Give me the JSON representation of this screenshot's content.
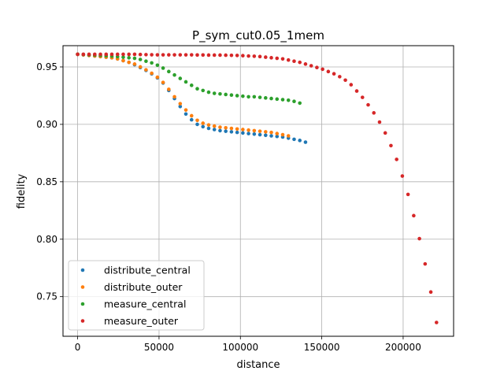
{
  "chart_data": {
    "type": "scatter",
    "title": "P_sym_cut0.05_1mem",
    "xlabel": "distance",
    "ylabel": "fidelity",
    "xlim": [
      -9000,
      231000
    ],
    "ylim": [
      0.7155,
      0.9685
    ],
    "xticks": [
      0,
      50000,
      100000,
      150000,
      200000
    ],
    "xtick_labels": [
      "0",
      "50000",
      "100000",
      "150000",
      "200000"
    ],
    "yticks": [
      0.75,
      0.8,
      0.85,
      0.9,
      0.95
    ],
    "ytick_labels": [
      "0.75",
      "0.80",
      "0.85",
      "0.90",
      "0.95"
    ],
    "grid": true,
    "legend_position": "lower-left",
    "series": [
      {
        "name": "distribute_central",
        "color": "#1f77b4",
        "x": [
          0,
          3500,
          7000,
          10500,
          14000,
          17500,
          21000,
          24500,
          28000,
          31500,
          35000,
          38500,
          42000,
          45500,
          49000,
          52500,
          56000,
          59500,
          63000,
          66500,
          70000,
          73500,
          77000,
          80500,
          84000,
          87500,
          91000,
          94500,
          98000,
          101500,
          105000,
          108500,
          112000,
          115500,
          119000,
          122500,
          126000,
          129500,
          133000,
          136500,
          140000
        ],
        "y": [
          0.961,
          0.9605,
          0.96,
          0.9595,
          0.959,
          0.9585,
          0.958,
          0.957,
          0.9555,
          0.954,
          0.952,
          0.9495,
          0.947,
          0.944,
          0.9405,
          0.936,
          0.9295,
          0.9225,
          0.9155,
          0.909,
          0.904,
          0.9,
          0.898,
          0.8965,
          0.8955,
          0.8945,
          0.894,
          0.8935,
          0.893,
          0.8925,
          0.892,
          0.8915,
          0.891,
          0.8905,
          0.89,
          0.8895,
          0.889,
          0.888,
          0.887,
          0.886,
          0.8845
        ]
      },
      {
        "name": "distribute_outer",
        "color": "#ff7f0e",
        "x": [
          0,
          3500,
          7000,
          10500,
          14000,
          17500,
          21000,
          24500,
          28000,
          31500,
          35000,
          38500,
          42000,
          45500,
          49000,
          52500,
          56000,
          59500,
          63000,
          66500,
          70000,
          73500,
          77000,
          80500,
          84000,
          87500,
          91000,
          94500,
          98000,
          101500,
          105000,
          108500,
          112000,
          115500,
          119000,
          122500,
          126000,
          129500
        ],
        "y": [
          0.961,
          0.9605,
          0.96,
          0.9595,
          0.959,
          0.9585,
          0.958,
          0.957,
          0.9555,
          0.954,
          0.9525,
          0.95,
          0.9475,
          0.9445,
          0.941,
          0.9365,
          0.9305,
          0.924,
          0.918,
          0.9125,
          0.9075,
          0.9035,
          0.901,
          0.8995,
          0.8985,
          0.8975,
          0.897,
          0.8965,
          0.896,
          0.8955,
          0.895,
          0.8945,
          0.894,
          0.8935,
          0.893,
          0.892,
          0.891,
          0.89
        ]
      },
      {
        "name": "measure_central",
        "color": "#2ca02c",
        "x": [
          0,
          3500,
          7000,
          10500,
          14000,
          17500,
          21000,
          24500,
          28000,
          31500,
          35000,
          38500,
          42000,
          45500,
          49000,
          52500,
          56000,
          59500,
          63000,
          66500,
          70000,
          73500,
          77000,
          80500,
          84000,
          87500,
          91000,
          94500,
          98000,
          101500,
          105000,
          108500,
          112000,
          115500,
          119000,
          122500,
          126000,
          129500,
          133000,
          136500
        ],
        "y": [
          0.961,
          0.9608,
          0.9605,
          0.9603,
          0.96,
          0.9597,
          0.9594,
          0.959,
          0.9585,
          0.958,
          0.9575,
          0.9565,
          0.955,
          0.9535,
          0.9515,
          0.949,
          0.946,
          0.943,
          0.94,
          0.937,
          0.934,
          0.931,
          0.9295,
          0.928,
          0.927,
          0.9265,
          0.926,
          0.9255,
          0.925,
          0.9245,
          0.924,
          0.924,
          0.9235,
          0.923,
          0.9225,
          0.922,
          0.9215,
          0.921,
          0.92,
          0.9185
        ]
      },
      {
        "name": "measure_outer",
        "color": "#d62728",
        "x": [
          0,
          3500,
          7000,
          10500,
          14000,
          17500,
          21000,
          24500,
          28000,
          31500,
          35000,
          38500,
          42000,
          45500,
          49000,
          52500,
          56000,
          59500,
          63000,
          66500,
          70000,
          73500,
          77000,
          80500,
          84000,
          87500,
          91000,
          94500,
          98000,
          101500,
          105000,
          108500,
          112000,
          115500,
          119000,
          122500,
          126000,
          129500,
          133000,
          136500,
          140000,
          143500,
          147000,
          150500,
          154000,
          157500,
          161000,
          164500,
          168000,
          171500,
          175000,
          178500,
          182000,
          185500,
          189000,
          192500,
          196000,
          199500,
          203000,
          206500,
          210000,
          213500,
          217000,
          220500
        ],
        "y": [
          0.961,
          0.961,
          0.961,
          0.961,
          0.961,
          0.961,
          0.961,
          0.961,
          0.961,
          0.961,
          0.961,
          0.9608,
          0.9607,
          0.9606,
          0.9605,
          0.9605,
          0.9605,
          0.9605,
          0.9605,
          0.9605,
          0.9605,
          0.9604,
          0.9604,
          0.9603,
          0.9603,
          0.9603,
          0.9602,
          0.9601,
          0.96,
          0.9598,
          0.9595,
          0.9593,
          0.959,
          0.9585,
          0.958,
          0.9575,
          0.957,
          0.956,
          0.955,
          0.954,
          0.9525,
          0.951,
          0.9495,
          0.948,
          0.946,
          0.944,
          0.9415,
          0.9385,
          0.9345,
          0.929,
          0.9235,
          0.917,
          0.91,
          0.902,
          0.8925,
          0.8815,
          0.8695,
          0.855,
          0.839,
          0.8205,
          0.8005,
          0.7785,
          0.754,
          0.7275
        ]
      }
    ]
  }
}
